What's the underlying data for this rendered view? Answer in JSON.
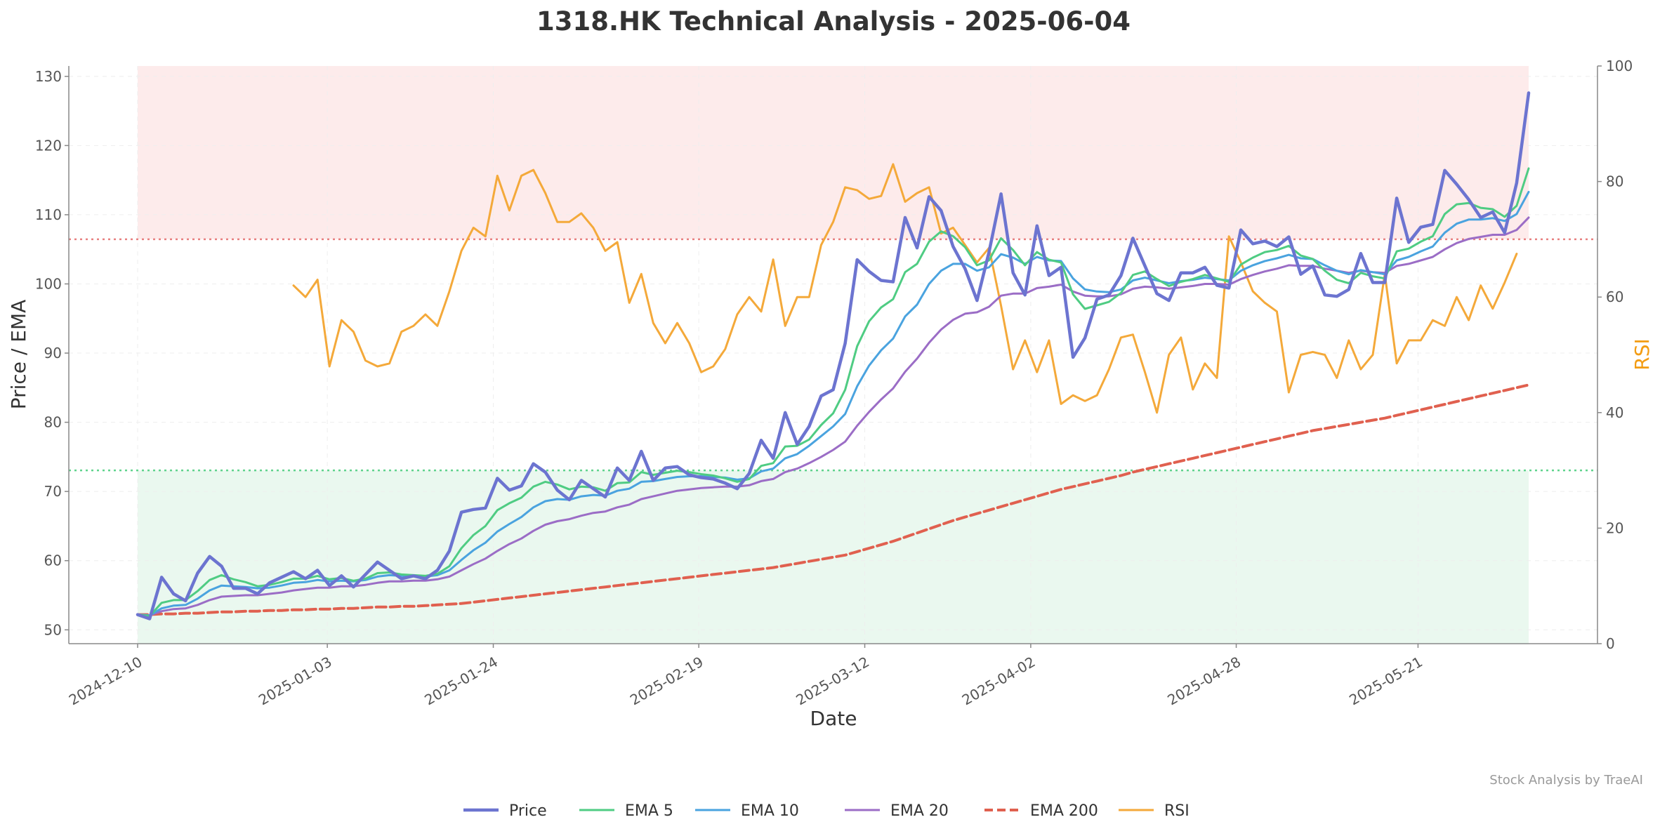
{
  "chart_data": {
    "type": "line",
    "title": "1318.HK Technical Analysis - 2025-06-04",
    "xlabel": "Date",
    "ylabel": "Price / EMA",
    "y2label": "RSI",
    "watermark": "Stock Analysis by TraeAI",
    "ylim": [
      48,
      131.5
    ],
    "y2lim": [
      0,
      100
    ],
    "yticks": [
      50,
      60,
      70,
      80,
      90,
      100,
      110,
      120,
      130
    ],
    "y2ticks": [
      0,
      20,
      40,
      60,
      80,
      100
    ],
    "xticks": [
      "2024-12-10",
      "2025-01-03",
      "2025-01-24",
      "2025-02-19",
      "2025-03-12",
      "2025-04-02",
      "2025-04-28",
      "2025-05-21"
    ],
    "x_start": "2024-12-10",
    "x_end": "2025-06-04",
    "rsi_overbought": 70,
    "rsi_oversold": 30,
    "legend_position": "bottom-center",
    "grid": true,
    "colors": {
      "price": "#6c74d0",
      "ema5": "#4fcc83",
      "ema10": "#4aa3df",
      "ema20": "#9b6dc6",
      "ema200": "#e0604f",
      "rsi": "#f4a93a",
      "overbought_zone": "#fde8e8",
      "oversold_zone": "#e6f7ec",
      "overbought_line": "#e88080",
      "oversold_line": "#5fd38d"
    },
    "series": [
      {
        "name": "Price",
        "key": "price",
        "values": [
          52.2,
          51.6,
          57.6,
          55.2,
          54.2,
          58.2,
          60.6,
          59.2,
          56.0,
          56.0,
          55.2,
          56.8,
          57.6,
          58.4,
          57.4,
          58.6,
          56.4,
          57.8,
          56.2,
          58.0,
          59.8,
          58.6,
          57.4,
          57.8,
          57.4,
          58.6,
          61.4,
          67.0,
          67.4,
          67.6,
          71.9,
          70.2,
          70.8,
          74.0,
          72.8,
          70.2,
          68.8,
          71.6,
          70.4,
          69.2,
          73.4,
          71.6,
          75.8,
          71.6,
          73.4,
          73.6,
          72.4,
          72.0,
          71.8,
          71.2,
          70.4,
          72.6,
          77.4,
          74.8,
          81.4,
          76.8,
          79.4,
          83.8,
          84.7,
          91.4,
          103.5,
          101.8,
          100.5,
          100.3,
          109.6,
          105.2,
          112.6,
          110.6,
          105.4,
          102.2,
          97.6,
          104.6,
          113.0,
          101.6,
          98.4,
          108.4,
          101.2,
          102.4,
          89.4,
          92.2,
          97.8,
          98.4,
          101.2,
          106.6,
          102.6,
          98.6,
          97.6,
          101.6,
          101.6,
          102.4,
          99.8,
          99.4,
          107.8,
          105.8,
          106.2,
          105.4,
          106.8,
          101.4,
          102.6,
          98.4,
          98.2,
          99.2,
          104.4,
          100.2,
          100.2,
          112.4,
          106.0,
          108.2,
          108.6,
          116.4,
          114.4,
          112.2,
          109.6,
          110.4,
          107.4,
          114.6,
          127.6
        ]
      },
      {
        "name": "EMA 5",
        "key": "ema5",
        "values": [
          52.2,
          52.0,
          53.9,
          54.3,
          54.3,
          55.6,
          57.2,
          57.9,
          57.3,
          56.9,
          56.3,
          56.5,
          56.9,
          57.4,
          57.4,
          57.8,
          57.3,
          57.5,
          57.1,
          57.4,
          58.2,
          58.3,
          58.0,
          57.9,
          57.8,
          58.1,
          59.2,
          61.8,
          63.7,
          65.0,
          67.3,
          68.3,
          69.1,
          70.7,
          71.4,
          71.0,
          70.3,
          70.7,
          70.6,
          70.1,
          71.2,
          71.3,
          72.8,
          72.4,
          72.7,
          73.0,
          72.8,
          72.5,
          72.3,
          71.9,
          71.4,
          71.8,
          73.7,
          74.1,
          76.5,
          76.6,
          77.5,
          79.6,
          81.3,
          84.7,
          91.0,
          94.6,
          96.6,
          97.8,
          101.7,
          102.9,
          106.1,
          107.6,
          106.9,
          105.3,
          102.7,
          103.4,
          106.6,
          104.9,
          102.7,
          104.6,
          103.5,
          103.1,
          98.5,
          96.4,
          96.9,
          97.4,
          98.7,
          101.3,
          101.8,
          100.7,
          99.7,
          100.3,
          100.7,
          101.3,
          100.8,
          100.3,
          102.8,
          103.8,
          104.6,
          104.9,
          105.5,
          104.1,
          103.6,
          101.9,
          100.6,
          100.1,
          101.6,
          101.1,
          100.8,
          104.7,
          105.1,
          106.1,
          106.9,
          110.1,
          111.5,
          111.7,
          111.0,
          110.8,
          109.7,
          111.3,
          116.7
        ]
      },
      {
        "name": "EMA 10",
        "key": "ema10",
        "values": [
          52.2,
          52.1,
          53.1,
          53.5,
          53.6,
          54.5,
          55.7,
          56.4,
          56.3,
          56.2,
          56.0,
          56.1,
          56.4,
          56.8,
          56.9,
          57.2,
          57.0,
          57.1,
          57.0,
          57.2,
          57.7,
          57.9,
          57.8,
          57.8,
          57.7,
          57.9,
          58.6,
          60.1,
          61.5,
          62.6,
          64.2,
          65.3,
          66.3,
          67.7,
          68.6,
          68.9,
          68.8,
          69.3,
          69.5,
          69.4,
          70.1,
          70.4,
          71.4,
          71.5,
          71.8,
          72.1,
          72.2,
          72.2,
          72.1,
          72.0,
          71.7,
          71.9,
          72.9,
          73.3,
          74.8,
          75.4,
          76.6,
          78.0,
          79.4,
          81.2,
          85.2,
          88.2,
          90.4,
          92.1,
          95.3,
          97.0,
          100.0,
          101.9,
          102.9,
          102.9,
          101.9,
          102.4,
          104.3,
          103.8,
          102.9,
          103.9,
          103.4,
          103.3,
          100.8,
          99.2,
          98.9,
          98.8,
          99.2,
          100.5,
          100.9,
          100.5,
          100.1,
          100.4,
          100.6,
          100.9,
          100.7,
          100.5,
          101.9,
          102.7,
          103.3,
          103.7,
          104.2,
          103.7,
          103.6,
          102.7,
          101.9,
          101.4,
          102.0,
          101.7,
          101.4,
          103.4,
          103.9,
          104.7,
          105.4,
          107.4,
          108.7,
          109.3,
          109.3,
          109.5,
          109.1,
          110.1,
          113.3
        ]
      },
      {
        "name": "EMA 20",
        "key": "ema20",
        "values": [
          52.2,
          52.1,
          52.7,
          53.0,
          53.1,
          53.6,
          54.3,
          54.8,
          54.9,
          55.0,
          55.0,
          55.2,
          55.4,
          55.7,
          55.9,
          56.1,
          56.1,
          56.3,
          56.3,
          56.5,
          56.8,
          57.0,
          57.0,
          57.1,
          57.1,
          57.3,
          57.7,
          58.6,
          59.5,
          60.3,
          61.4,
          62.4,
          63.2,
          64.3,
          65.2,
          65.7,
          66.0,
          66.5,
          66.9,
          67.1,
          67.7,
          68.1,
          68.9,
          69.3,
          69.7,
          70.1,
          70.3,
          70.5,
          70.6,
          70.7,
          70.7,
          70.9,
          71.5,
          71.8,
          72.8,
          73.3,
          74.1,
          75.0,
          76.0,
          77.2,
          79.5,
          81.5,
          83.3,
          84.9,
          87.3,
          89.2,
          91.5,
          93.4,
          94.8,
          95.7,
          95.9,
          96.7,
          98.3,
          98.6,
          98.6,
          99.4,
          99.6,
          99.9,
          98.9,
          98.3,
          98.2,
          98.2,
          98.5,
          99.3,
          99.6,
          99.5,
          99.3,
          99.5,
          99.7,
          100.0,
          100.0,
          99.9,
          100.7,
          101.3,
          101.8,
          102.2,
          102.7,
          102.6,
          102.6,
          102.2,
          101.9,
          101.6,
          101.9,
          101.7,
          101.6,
          102.6,
          102.9,
          103.4,
          103.9,
          105.0,
          105.9,
          106.5,
          106.8,
          107.1,
          107.1,
          107.8,
          109.6
        ]
      },
      {
        "name": "EMA 200",
        "key": "ema200",
        "values": [
          52.2,
          52.2,
          52.3,
          52.3,
          52.4,
          52.4,
          52.5,
          52.6,
          52.6,
          52.7,
          52.7,
          52.8,
          52.8,
          52.9,
          52.9,
          53.0,
          53.0,
          53.1,
          53.1,
          53.2,
          53.3,
          53.3,
          53.4,
          53.4,
          53.5,
          53.6,
          53.7,
          53.8,
          54.0,
          54.2,
          54.4,
          54.6,
          54.8,
          55.0,
          55.2,
          55.4,
          55.6,
          55.8,
          56.0,
          56.2,
          56.4,
          56.6,
          56.8,
          57.0,
          57.2,
          57.4,
          57.6,
          57.8,
          58.0,
          58.2,
          58.4,
          58.6,
          58.8,
          59.0,
          59.3,
          59.6,
          59.9,
          60.2,
          60.5,
          60.8,
          61.3,
          61.8,
          62.3,
          62.8,
          63.4,
          64.0,
          64.6,
          65.2,
          65.8,
          66.3,
          66.8,
          67.3,
          67.8,
          68.3,
          68.8,
          69.3,
          69.8,
          70.3,
          70.7,
          71.1,
          71.5,
          71.9,
          72.3,
          72.8,
          73.2,
          73.6,
          74.0,
          74.4,
          74.8,
          75.2,
          75.6,
          76.0,
          76.4,
          76.8,
          77.2,
          77.6,
          78.0,
          78.4,
          78.8,
          79.1,
          79.4,
          79.7,
          80.0,
          80.3,
          80.6,
          81.0,
          81.4,
          81.8,
          82.2,
          82.6,
          83.0,
          83.4,
          83.8,
          84.2,
          84.6,
          85.0,
          85.4
        ]
      },
      {
        "name": "RSI",
        "key": "rsi",
        "axis": "right",
        "start_index": 13,
        "values": [
          62,
          60,
          63,
          48,
          56,
          54,
          49,
          48,
          48.5,
          54,
          55,
          57,
          55,
          61,
          68,
          72,
          70.5,
          81,
          75,
          81,
          82,
          78,
          73,
          73,
          74.5,
          72,
          68,
          69.5,
          59,
          64,
          55.5,
          52,
          55.5,
          52,
          47,
          48,
          51,
          57,
          60,
          57.5,
          66.5,
          55,
          60,
          60,
          69,
          73,
          79,
          78.5,
          77,
          77.5,
          83,
          76.5,
          78,
          79,
          71,
          72,
          69,
          66,
          68.5,
          58.5,
          47.5,
          52.5,
          47,
          52.5,
          41.5,
          43,
          42,
          43,
          47.5,
          53,
          53.5,
          47,
          40,
          50,
          53,
          44,
          48.5,
          46,
          70.5,
          66,
          61,
          59,
          57.5,
          43.5,
          50,
          50.5,
          50,
          46,
          52.5,
          47.5,
          50,
          64,
          48.5,
          52.5,
          52.5,
          56,
          55,
          60,
          56,
          62,
          58,
          62.5,
          67.5
        ]
      }
    ]
  }
}
